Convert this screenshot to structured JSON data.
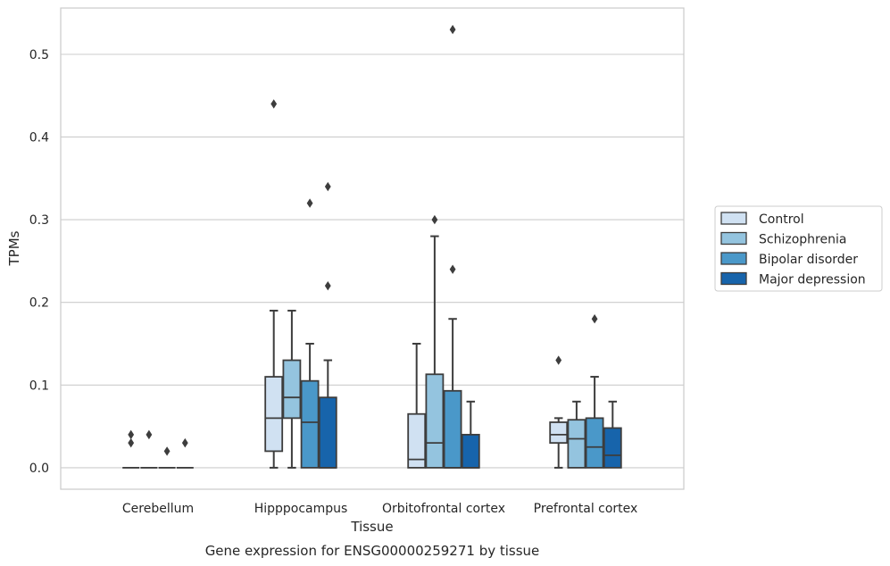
{
  "chart_data": {
    "type": "box",
    "title": "",
    "caption": "Gene expression for ENSG00000259271 by tissue",
    "xlabel": "Tissue",
    "ylabel": "TPMs",
    "ylim": [
      -0.026,
      0.556
    ],
    "yticks": [
      0.0,
      0.1,
      0.2,
      0.3,
      0.4,
      0.5
    ],
    "ytick_labels": [
      "0.0",
      "0.1",
      "0.2",
      "0.3",
      "0.4",
      "0.5"
    ],
    "grid": "horizontal",
    "legend_position": "right",
    "categories": [
      "Cerebellum",
      "Hipppocampus",
      "Orbitofrontal cortex",
      "Prefrontal cortex"
    ],
    "series": [
      {
        "name": "Control",
        "color": "#d0e1f2",
        "boxes": [
          {
            "q1": 0.0,
            "median": 0.0,
            "q3": 0.0,
            "whisker_low": 0.0,
            "whisker_high": 0.0,
            "outliers": [
              0.03,
              0.04
            ]
          },
          {
            "q1": 0.02,
            "median": 0.06,
            "q3": 0.11,
            "whisker_low": 0.0,
            "whisker_high": 0.19,
            "outliers": [
              0.44
            ]
          },
          {
            "q1": 0.0,
            "median": 0.01,
            "q3": 0.065,
            "whisker_low": 0.0,
            "whisker_high": 0.15,
            "outliers": []
          },
          {
            "q1": 0.03,
            "median": 0.04,
            "q3": 0.055,
            "whisker_low": 0.0,
            "whisker_high": 0.06,
            "outliers": [
              0.13
            ]
          }
        ]
      },
      {
        "name": "Schizophrenia",
        "color": "#94c4df",
        "boxes": [
          {
            "q1": 0.0,
            "median": 0.0,
            "q3": 0.0,
            "whisker_low": 0.0,
            "whisker_high": 0.0,
            "outliers": [
              0.04
            ]
          },
          {
            "q1": 0.06,
            "median": 0.085,
            "q3": 0.13,
            "whisker_low": 0.0,
            "whisker_high": 0.19,
            "outliers": []
          },
          {
            "q1": 0.0,
            "median": 0.03,
            "q3": 0.113,
            "whisker_low": 0.0,
            "whisker_high": 0.28,
            "outliers": [
              0.3
            ]
          },
          {
            "q1": 0.0,
            "median": 0.035,
            "q3": 0.058,
            "whisker_low": 0.0,
            "whisker_high": 0.08,
            "outliers": []
          }
        ]
      },
      {
        "name": "Bipolar disorder",
        "color": "#4a98c9",
        "boxes": [
          {
            "q1": 0.0,
            "median": 0.0,
            "q3": 0.0,
            "whisker_low": 0.0,
            "whisker_high": 0.0,
            "outliers": [
              0.02
            ]
          },
          {
            "q1": 0.0,
            "median": 0.055,
            "q3": 0.105,
            "whisker_low": 0.0,
            "whisker_high": 0.15,
            "outliers": [
              0.32
            ]
          },
          {
            "q1": 0.0,
            "median": 0.0,
            "q3": 0.093,
            "whisker_low": 0.0,
            "whisker_high": 0.18,
            "outliers": [
              0.24,
              0.53
            ]
          },
          {
            "q1": 0.0,
            "median": 0.025,
            "q3": 0.06,
            "whisker_low": 0.0,
            "whisker_high": 0.11,
            "outliers": [
              0.18
            ]
          }
        ]
      },
      {
        "name": "Major depression",
        "color": "#1764ab",
        "boxes": [
          {
            "q1": 0.0,
            "median": 0.0,
            "q3": 0.0,
            "whisker_low": 0.0,
            "whisker_high": 0.0,
            "outliers": [
              0.03
            ]
          },
          {
            "q1": 0.0,
            "median": 0.0,
            "q3": 0.085,
            "whisker_low": 0.0,
            "whisker_high": 0.13,
            "outliers": [
              0.22,
              0.34
            ]
          },
          {
            "q1": 0.0,
            "median": 0.0,
            "q3": 0.04,
            "whisker_low": 0.0,
            "whisker_high": 0.08,
            "outliers": []
          },
          {
            "q1": 0.0,
            "median": 0.015,
            "q3": 0.048,
            "whisker_low": 0.0,
            "whisker_high": 0.08,
            "outliers": []
          }
        ]
      }
    ]
  }
}
